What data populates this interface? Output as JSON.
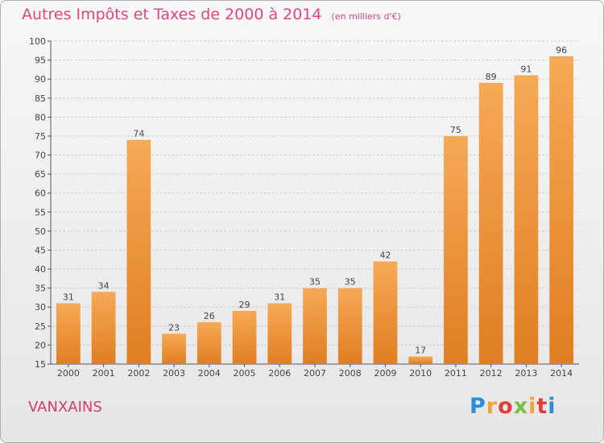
{
  "title": {
    "main": "Autres Impôts et Taxes de 2000 à 2014",
    "unit": "(en milliers d'€)"
  },
  "town": "VANXAINS",
  "logo": {
    "letters": [
      "P",
      "r",
      "o",
      "x",
      "i",
      "t",
      "i"
    ]
  },
  "colors": {
    "bar_light": "#f6a955",
    "bar_dark": "#e07e22",
    "title": "#e0457f",
    "town": "#d23c70"
  },
  "chart_data": {
    "type": "bar",
    "title": "Autres Impôts et Taxes de 2000 à 2014",
    "subtitle": "(en milliers d'€)",
    "categories": [
      "2000",
      "2001",
      "2002",
      "2003",
      "2004",
      "2005",
      "2006",
      "2007",
      "2008",
      "2009",
      "2010",
      "2011",
      "2012",
      "2013",
      "2014"
    ],
    "values": [
      31,
      34,
      74,
      23,
      26,
      29,
      31,
      35,
      35,
      42,
      17,
      75,
      89,
      91,
      96
    ],
    "ylim": [
      15,
      100
    ],
    "yticks": [
      15,
      20,
      25,
      30,
      35,
      40,
      45,
      50,
      55,
      60,
      65,
      70,
      75,
      80,
      85,
      90,
      95,
      100
    ],
    "grid": true,
    "xlabel": "",
    "ylabel": ""
  }
}
